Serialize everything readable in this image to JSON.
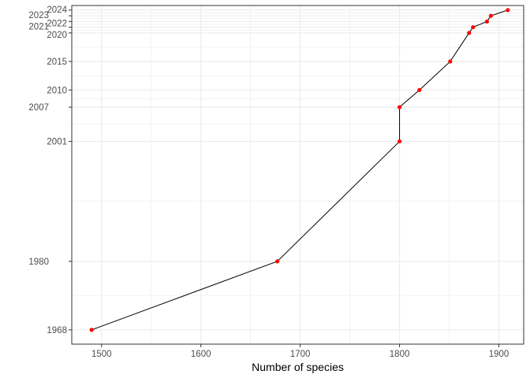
{
  "chart_data": {
    "type": "line",
    "title": "",
    "xlabel": "Number of species",
    "ylabel": "",
    "xlim": [
      1470,
      1925
    ],
    "ylim": [
      1965.5,
      2024.8
    ],
    "x_ticks": [
      1500,
      1600,
      1700,
      1800,
      1900
    ],
    "y_ticks": [
      1968,
      1980,
      2001,
      2007,
      2010,
      2015,
      2020,
      2021,
      2022,
      2023,
      2024
    ],
    "grid": true,
    "series": [
      {
        "points": [
          {
            "x": 1490,
            "y": 1968
          },
          {
            "x": 1677,
            "y": 1980
          },
          {
            "x": 1800,
            "y": 2001
          },
          {
            "x": 1800,
            "y": 2007
          },
          {
            "x": 1820,
            "y": 2010
          },
          {
            "x": 1851,
            "y": 2015
          },
          {
            "x": 1870,
            "y": 2020
          },
          {
            "x": 1874,
            "y": 2021
          },
          {
            "x": 1888,
            "y": 2022
          },
          {
            "x": 1892,
            "y": 2023
          },
          {
            "x": 1909,
            "y": 2024
          }
        ]
      }
    ]
  },
  "colors": {
    "line": "#000000",
    "points": "#ff0000",
    "grid": "#ebebeb",
    "panel_border": "#333333",
    "tick_text": "#4d4d4d"
  }
}
